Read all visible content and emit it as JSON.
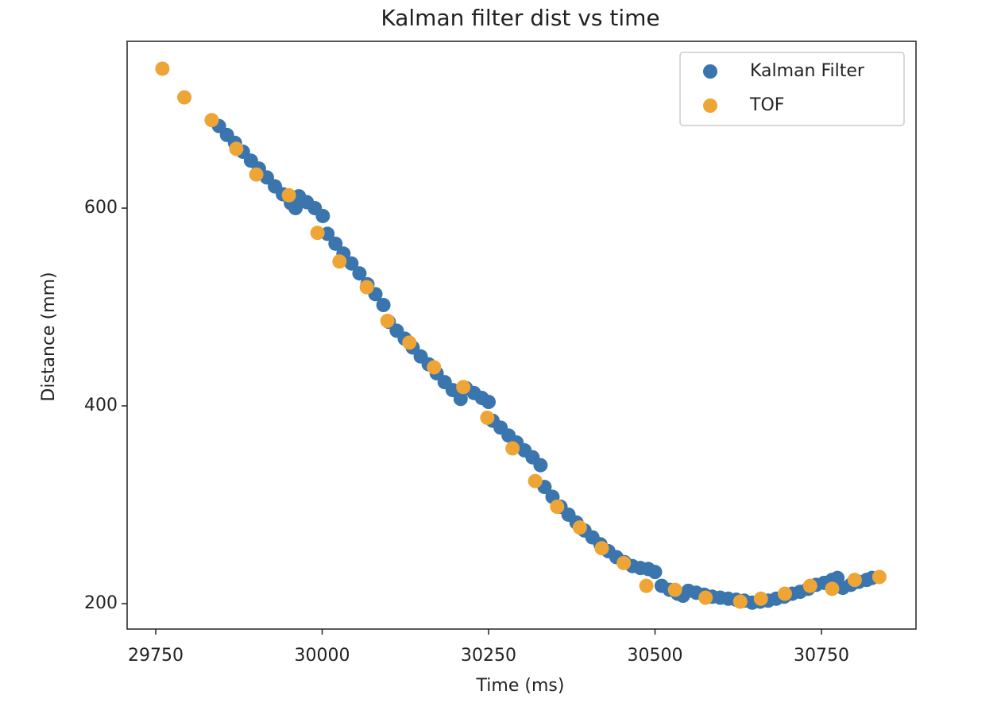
{
  "chart_data": {
    "type": "scatter",
    "title": "Kalman filter dist vs time",
    "x_label": "Time (ms)",
    "y_label": "Distance (mm)",
    "xlim": [
      29707,
      30892
    ],
    "ylim": [
      174.3,
      768.7
    ],
    "xticks": [
      29750,
      30000,
      30250,
      30500,
      30750
    ],
    "yticks": [
      200,
      400,
      600
    ],
    "legend": "upper right",
    "series": [
      {
        "name": "Kalman Filter",
        "color": "#3a75ae",
        "x": [
          29845,
          29857,
          29869,
          29881,
          29893,
          29905,
          29917,
          29929,
          29941,
          29953,
          29960,
          29965,
          29977,
          29989,
          30001,
          30008,
          30020,
          30032,
          30044,
          30056,
          30068,
          30080,
          30092,
          30100,
          30112,
          30124,
          30136,
          30148,
          30160,
          30172,
          30184,
          30196,
          30208,
          30216,
          30228,
          30240,
          30250,
          30256,
          30268,
          30280,
          30292,
          30304,
          30316,
          30328,
          30334,
          30346,
          30358,
          30370,
          30382,
          30394,
          30406,
          30418,
          30430,
          30442,
          30454,
          30466,
          30478,
          30490,
          30500,
          30510,
          30522,
          30534,
          30542,
          30550,
          30562,
          30574,
          30586,
          30598,
          30610,
          30622,
          30634,
          30646,
          30658,
          30670,
          30682,
          30694,
          30706,
          30718,
          30730,
          30742,
          30754,
          30766,
          30774,
          30782,
          30794,
          30806,
          30818,
          30826
        ],
        "values": [
          683,
          674,
          666,
          657,
          648,
          640,
          631,
          622,
          614,
          605,
          600,
          612,
          606,
          600,
          592,
          574,
          564,
          554,
          544,
          534,
          523,
          513,
          502,
          485,
          476,
          468,
          459,
          450,
          442,
          433,
          424,
          416,
          407,
          418,
          413,
          408,
          404,
          385,
          378,
          370,
          363,
          355,
          348,
          340,
          318,
          308,
          298,
          290,
          282,
          274,
          267,
          260,
          253,
          247,
          242,
          238,
          236,
          235,
          232,
          218,
          214,
          210,
          208,
          213,
          211,
          209,
          207,
          206,
          205,
          204,
          203,
          201,
          202,
          203,
          205,
          207,
          210,
          212,
          215,
          219,
          221,
          224,
          226,
          216,
          219,
          222,
          224,
          226
        ]
      },
      {
        "name": "TOF",
        "color": "#efa535",
        "x": [
          29760,
          29793,
          29834,
          29871,
          29901,
          29950,
          29993,
          30026,
          30067,
          30098,
          30131,
          30168,
          30212,
          30248,
          30286,
          30320,
          30353,
          30387,
          30420,
          30453,
          30487,
          30530,
          30576,
          30628,
          30659,
          30695,
          30733,
          30766,
          30800,
          30837
        ],
        "values": [
          741,
          712,
          689,
          660,
          634,
          613,
          575,
          546,
          520,
          486,
          464,
          439,
          419,
          388,
          357,
          324,
          298,
          277,
          256,
          241,
          218,
          214,
          206,
          202,
          205,
          210,
          218,
          215,
          224,
          227
        ]
      }
    ]
  }
}
